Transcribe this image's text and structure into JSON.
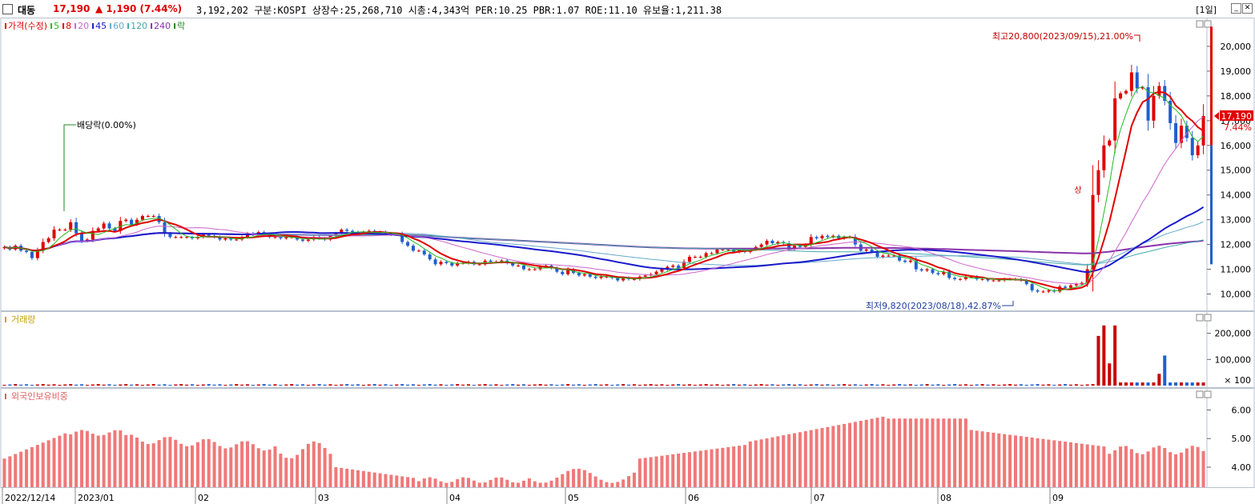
{
  "header": {
    "name": "대동",
    "price": "17,190",
    "change": "▲ 1,190 (7.44%)",
    "info": "3,192,202  구분:KOSPI 상장수:25,268,710 시총:4,343억 PER:10.25 PBR:1.07 ROE:11.10 유보율:1,211.38",
    "period": "[1일]",
    "min_icon": "minimize-icon",
    "close_icon": "close-icon"
  },
  "legend": {
    "price": [
      {
        "label": "가격(수정)",
        "color": "#e00000"
      },
      {
        "label": "5",
        "color": "#22bb22"
      },
      {
        "label": "8",
        "color": "#e00000"
      },
      {
        "label": "20",
        "color": "#cc66cc"
      },
      {
        "label": "45",
        "color": "#1a1acc"
      },
      {
        "label": "60",
        "color": "#66aacc"
      },
      {
        "label": "120",
        "color": "#44aaaa"
      },
      {
        "label": "240",
        "color": "#8833aa"
      },
      {
        "label": "락",
        "color": "#228822"
      }
    ],
    "volume": "거래량",
    "foreign": "외국인보유비중"
  },
  "annotations": {
    "high": "최고20,800(2023/09/15),21.00%",
    "low": "최저9,820(2023/08/18),42.87%",
    "dividend": "배당락(0.00%)",
    "up_arrow": "상",
    "current_price": "17,190",
    "current_pct": "7.44%"
  },
  "chart_data": [
    {
      "type": "candlestick",
      "title": "가격(수정)",
      "y_ticks": [
        "20,000",
        "19,000",
        "18,000",
        "17,000",
        "16,000",
        "15,000",
        "14,000",
        "13,000",
        "12,000",
        "11,000",
        "10,000"
      ],
      "ylim": [
        9500,
        21000
      ],
      "x_labels": [
        "2022/12/14",
        "2023/01",
        "02",
        "03",
        "04",
        "05",
        "06",
        "07",
        "08",
        "09"
      ],
      "close": [
        11900,
        11800,
        11950,
        11750,
        11700,
        11450,
        11750,
        12100,
        12250,
        12600,
        12600,
        12600,
        12900,
        12450,
        12150,
        12200,
        12550,
        12650,
        12850,
        12650,
        12550,
        12950,
        13000,
        12800,
        13000,
        13150,
        13150,
        13150,
        12900,
        12450,
        12300,
        12300,
        12300,
        12300,
        12250,
        12300,
        12400,
        12350,
        12300,
        12200,
        12250,
        12200,
        12200,
        12300,
        12450,
        12400,
        12500,
        12400,
        12300,
        12300,
        12250,
        12300,
        12300,
        12200,
        12150,
        12200,
        12300,
        12250,
        12200,
        12350,
        12450,
        12600,
        12550,
        12500,
        12400,
        12500,
        12550,
        12450,
        12500,
        12450,
        12400,
        12400,
        12100,
        11950,
        11750,
        11750,
        11600,
        11400,
        11200,
        11300,
        11250,
        11150,
        11250,
        11250,
        11300,
        11200,
        11200,
        11350,
        11300,
        11300,
        11350,
        11250,
        11150,
        11150,
        11000,
        11000,
        11000,
        11100,
        11150,
        11050,
        10900,
        10800,
        11000,
        10850,
        10750,
        10800,
        10700,
        10650,
        10700,
        10700,
        10650,
        10550,
        10650,
        10600,
        10600,
        10700,
        10750,
        10800,
        10900,
        11000,
        11100,
        11150,
        11050,
        11300,
        11500,
        11500,
        11500,
        11650,
        11650,
        11800,
        11800,
        11800,
        11700,
        11800,
        11700,
        11800,
        11900,
        12000,
        12150,
        12050,
        12100,
        12050,
        11800,
        11950,
        11900,
        12000,
        12300,
        12250,
        12350,
        12300,
        12350,
        12250,
        12300,
        12300,
        12000,
        11750,
        11800,
        11700,
        11500,
        11550,
        11550,
        11550,
        11350,
        11300,
        11350,
        11000,
        10950,
        11000,
        10850,
        10800,
        10900,
        10650,
        10600,
        10600,
        10700,
        10700,
        10600,
        10600,
        10550,
        10550,
        10550,
        10600,
        10600,
        10600,
        10550,
        10400,
        10150,
        10100,
        10100,
        10150,
        10100,
        10300,
        10250,
        10350,
        10400,
        10450,
        11000,
        14000,
        15000,
        16000,
        16200,
        17900,
        18100,
        18200,
        18950,
        18300,
        18350,
        17000,
        18000,
        18400,
        17800,
        16900,
        16100,
        16800,
        16300,
        15600,
        16000,
        17190
      ],
      "ma_colors": {
        "ma5": "#22bb22",
        "ma8": "#e00000",
        "ma20": "#cc66cc",
        "ma45": "#1a1acc",
        "ma60": "#66aacc",
        "ma120": "#44aaaa",
        "ma240": "#8833aa"
      }
    },
    {
      "type": "bar",
      "title": "거래량",
      "y_ticks": [
        "200,000",
        "100,000"
      ],
      "ylim": [
        0,
        260000
      ],
      "unit_label": "× 100"
    },
    {
      "type": "bar",
      "title": "외국인보유비중",
      "y_ticks": [
        "6.00",
        "5.00",
        "4.00"
      ],
      "ylim": [
        3.3,
        6.6
      ]
    }
  ]
}
